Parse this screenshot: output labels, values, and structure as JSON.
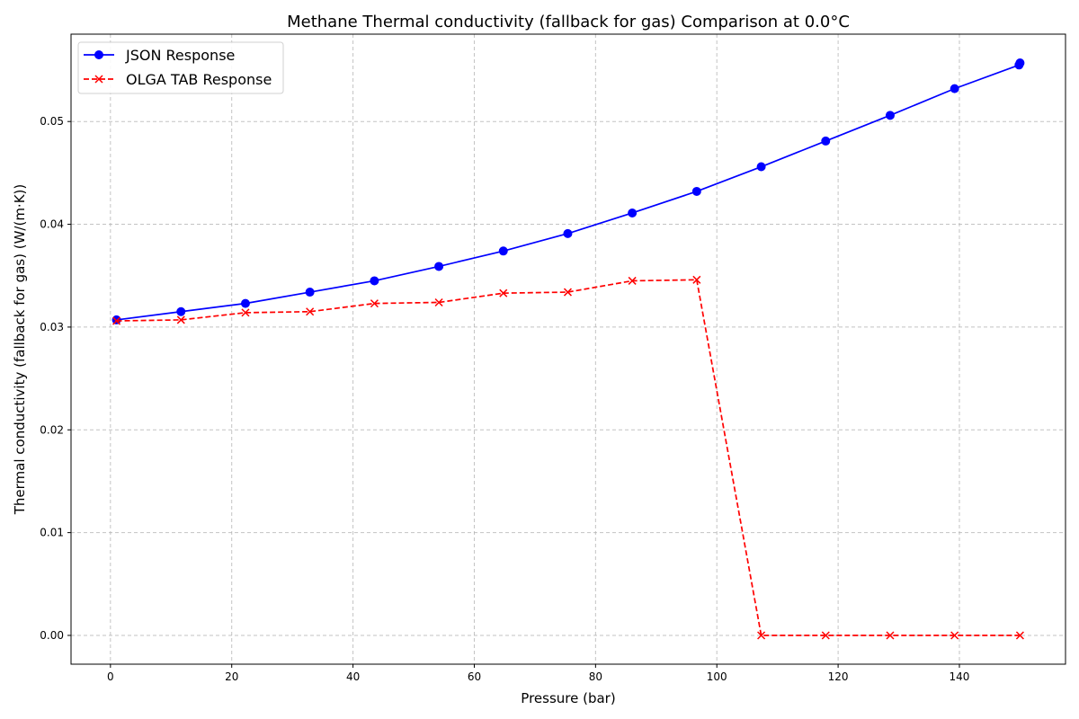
{
  "chart_data": {
    "type": "line",
    "title": "Methane Thermal conductivity (fallback for gas) Comparison at 0.0°C",
    "xlabel": "Pressure (bar)",
    "ylabel": "Thermal conductivity (fallback for gas) (W/(m·K))",
    "xlim": [
      -6.5,
      157.5
    ],
    "ylim": [
      -0.0028,
      0.0585
    ],
    "xticks": [
      0,
      20,
      40,
      60,
      80,
      100,
      120,
      140
    ],
    "xtick_labels": [
      "0",
      "20",
      "40",
      "60",
      "80",
      "100",
      "120",
      "140"
    ],
    "yticks": [
      0.0,
      0.01,
      0.02,
      0.03,
      0.04,
      0.05
    ],
    "ytick_labels": [
      "0.00",
      "0.01",
      "0.02",
      "0.03",
      "0.04",
      "0.05"
    ],
    "grid": true,
    "legend_position": "top-left",
    "series": [
      {
        "name": "JSON Response",
        "color": "#0000ff",
        "line_style": "solid",
        "marker": "circle",
        "x": [
          1,
          11.63,
          22.26,
          32.89,
          43.53,
          54.16,
          64.79,
          75.42,
          86.05,
          96.68,
          107.32,
          117.95,
          128.58,
          139.21,
          149.84,
          150
        ],
        "y": [
          0.0307,
          0.0315,
          0.0323,
          0.0334,
          0.0345,
          0.0359,
          0.0374,
          0.0391,
          0.0411,
          0.0432,
          0.0456,
          0.0481,
          0.0506,
          0.0532,
          0.0555,
          0.0557
        ]
      },
      {
        "name": "OLGA TAB Response",
        "color": "#ff0000",
        "line_style": "dashed",
        "marker": "x",
        "x": [
          1,
          11.63,
          22.26,
          32.89,
          43.53,
          54.16,
          64.79,
          75.42,
          86.05,
          96.68,
          107.32,
          117.95,
          128.58,
          139.21,
          150
        ],
        "y": [
          0.0306,
          0.0307,
          0.0314,
          0.0315,
          0.0323,
          0.0324,
          0.0333,
          0.0334,
          0.0345,
          0.0346,
          0.0,
          0.0,
          0.0,
          0.0,
          0.0
        ]
      }
    ]
  }
}
